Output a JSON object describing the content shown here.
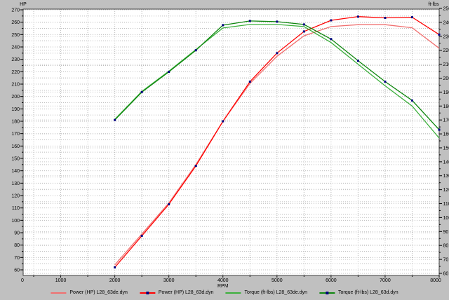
{
  "chart_data": {
    "type": "line",
    "title": "",
    "xlabel": "RPM",
    "grid": true,
    "legend_position": "bottom",
    "marker_color": "#000080",
    "background": "#c0c0c0",
    "plot_background": "#ffffff",
    "frame_color": "#404040",
    "grid_color": "#bcbcbc",
    "x_axis": {
      "min": 0,
      "max": 8000,
      "label_step": 1000,
      "grid_step": 500,
      "tick_labels": [
        "0",
        "1000",
        "2000",
        "3000",
        "4000",
        "5000",
        "6000",
        "7000",
        "8000"
      ]
    },
    "left_axis": {
      "title": "HP",
      "min": 60,
      "max": 270,
      "label_step": 10,
      "grid_step": 5,
      "tick_labels": [
        "270",
        "260",
        "250",
        "240",
        "230",
        "220",
        "210",
        "200",
        "190",
        "180",
        "170",
        "160",
        "150",
        "140",
        "130",
        "120",
        "110",
        "100",
        "90",
        "80",
        "70",
        "60"
      ]
    },
    "right_axis": {
      "title": "ft-lbs",
      "min": 60,
      "max": 250,
      "label_step": 10,
      "grid_step": 10,
      "tick_labels": [
        "250",
        "240",
        "230",
        "220",
        "210",
        "200",
        "190",
        "180",
        "170",
        "160",
        "150",
        "140",
        "130",
        "120",
        "110",
        "100",
        "90",
        "80",
        "70",
        "60"
      ]
    },
    "rpm": [
      2000,
      2500,
      3000,
      3500,
      4000,
      4500,
      5000,
      5500,
      6000,
      6500,
      7000,
      7500,
      8000
    ],
    "series": [
      {
        "name": "Power (HP) L28_63de.dyn",
        "axis": "left",
        "color": "#f07070",
        "markers": false,
        "values": [
          64,
          89,
          114,
          145,
          180,
          210.5,
          232.5,
          249,
          256.5,
          258,
          258,
          255.5,
          239
        ]
      },
      {
        "name": "Power (HP) L28_63d.dyn",
        "axis": "left",
        "color": "#ff0000",
        "markers": true,
        "values": [
          62,
          87.5,
          113,
          144,
          180,
          212,
          235,
          252.5,
          261.5,
          264.5,
          263.5,
          264,
          250
        ]
      },
      {
        "name": "Torque (ft-lbs) L28_63de.dyn",
        "axis": "right",
        "color": "#3cb03c",
        "markers": false,
        "values": [
          170.5,
          190.5,
          205,
          220.5,
          236,
          238.5,
          238.5,
          237,
          225.5,
          210,
          194.5,
          180,
          157
        ]
      },
      {
        "name": "Torque (ft-lbs) L28_63d.dyn",
        "axis": "right",
        "color": "#0e860e",
        "markers": true,
        "values": [
          170,
          190,
          204.5,
          220,
          238,
          241,
          240.5,
          238.5,
          228,
          212.5,
          197.5,
          184,
          163
        ]
      }
    ]
  }
}
